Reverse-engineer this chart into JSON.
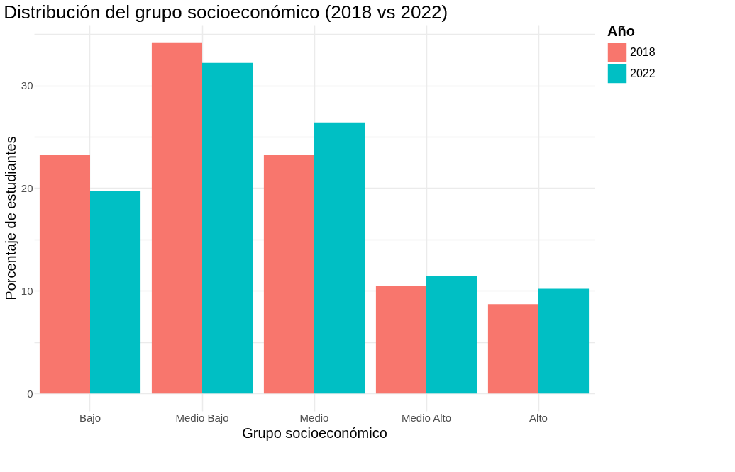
{
  "chart_data": {
    "type": "bar",
    "title": "Distribución del grupo socioeconómico (2018 vs 2022)",
    "xlabel": "Grupo socioeconómico",
    "ylabel": "Porcentaje de estudiantes",
    "legend_title": "Año",
    "categories": [
      "Bajo",
      "Medio Bajo",
      "Medio",
      "Medio Alto",
      "Alto"
    ],
    "series": [
      {
        "name": "2018",
        "color": "#f8766d",
        "values": [
          23.2,
          34.2,
          23.2,
          10.5,
          8.7
        ]
      },
      {
        "name": "2022",
        "color": "#00bfc4",
        "values": [
          19.7,
          32.2,
          26.4,
          11.4,
          10.2
        ]
      }
    ],
    "ylim": [
      -1.7,
      35.9
    ],
    "yticks": [
      0,
      {
        "value": 5,
        "label": null
      },
      10,
      {
        "value": 15,
        "label": null
      },
      20,
      {
        "value": 25,
        "label": null
      },
      30,
      {
        "value": 35,
        "label": null
      }
    ],
    "grid": true,
    "legend": "right"
  }
}
